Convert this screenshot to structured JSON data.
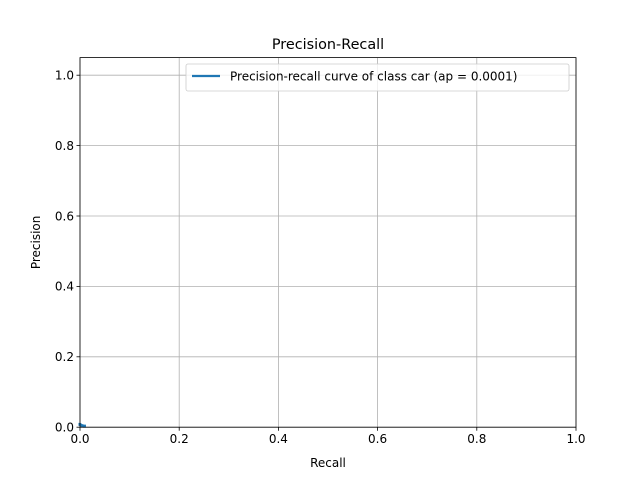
{
  "chart_data": {
    "type": "line",
    "title": "Precision-Recall",
    "xlabel": "Recall",
    "ylabel": "Precision",
    "xlim": [
      0.0,
      1.0
    ],
    "ylim": [
      0.0,
      1.05
    ],
    "xticks": [
      0.0,
      0.2,
      0.4,
      0.6,
      0.8,
      1.0
    ],
    "xtick_labels": [
      "0.0",
      "0.2",
      "0.4",
      "0.6",
      "0.8",
      "1.0"
    ],
    "yticks": [
      0.0,
      0.2,
      0.4,
      0.6,
      0.8,
      1.0
    ],
    "ytick_labels": [
      "0.0",
      "0.2",
      "0.4",
      "0.6",
      "0.8",
      "1.0"
    ],
    "grid": true,
    "legend_position": "top-right",
    "series": [
      {
        "name": "Precision-recall curve of class car (ap = 0.0001)",
        "color": "#1f77b4",
        "x": [
          0.0,
          0.0004,
          0.0008,
          0.0012,
          0.0016,
          0.002,
          0.0024,
          0.0028,
          0.0032,
          0.0036,
          0.004,
          0.005,
          0.006,
          0.007,
          0.008,
          0.009
        ],
        "y": [
          0.008,
          0.008,
          0.007,
          0.007,
          0.006,
          0.006,
          0.006,
          0.005,
          0.005,
          0.005,
          0.005,
          0.004,
          0.004,
          0.003,
          0.003,
          0.003
        ]
      }
    ]
  }
}
